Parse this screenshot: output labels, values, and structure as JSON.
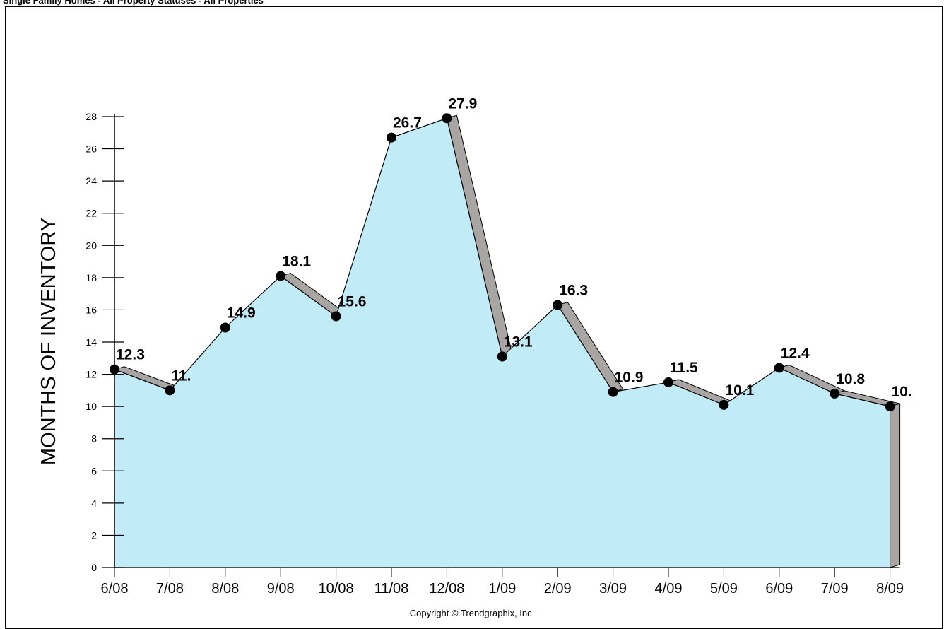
{
  "header": {
    "title": "Single Family Homes - All Property Statuses - All Properties"
  },
  "footer": {
    "copyright": "Copyright © Trendgraphix, Inc."
  },
  "chart_data": {
    "type": "area",
    "title": "",
    "xlabel": "",
    "ylabel": "MONTHS OF INVENTORY",
    "ylim": [
      0,
      28
    ],
    "yticks": [
      0,
      2,
      4,
      6,
      8,
      10,
      12,
      14,
      16,
      18,
      20,
      22,
      24,
      26,
      28
    ],
    "grid": false,
    "fill_color": "#c1ecf7",
    "shadow_color": "#a9a5a2",
    "categories": [
      "6/08",
      "7/08",
      "8/08",
      "9/08",
      "10/08",
      "11/08",
      "12/08",
      "1/09",
      "2/09",
      "3/09",
      "4/09",
      "5/09",
      "6/09",
      "7/09",
      "8/09"
    ],
    "values": [
      12.3,
      11.0,
      14.9,
      18.1,
      15.6,
      26.7,
      27.9,
      13.1,
      16.3,
      10.9,
      11.5,
      10.1,
      12.4,
      10.8,
      10.0
    ],
    "data_labels": [
      "12.3",
      "11.",
      "14.9",
      "18.1",
      "15.6",
      "26.7",
      "27.9",
      "13.1",
      "16.3",
      "10.9",
      "11.5",
      "10.1",
      "12.4",
      "10.8",
      "10."
    ]
  }
}
